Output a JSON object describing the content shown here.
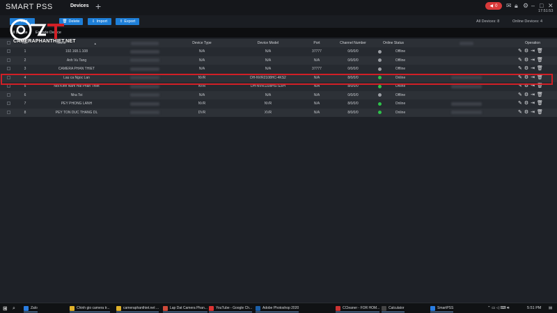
{
  "app": {
    "logo_text": "SMART PSS",
    "tab_title": "Devices",
    "add_tab_symbol": "+",
    "alarm_count": "0",
    "clock": "17:51:53"
  },
  "toolbar": {
    "buttons": [
      "Add",
      "Delete",
      "Import",
      "Export"
    ],
    "all_devices_label": "All Devices: 8",
    "online_devices_label": "Online Devices: 4"
  },
  "subtabs": [
    "All Device",
    "Encode Device"
  ],
  "watermark": {
    "text": "CAMERAPHANTHIET.NET"
  },
  "table": {
    "columns": [
      "No.",
      "Name",
      "IP",
      "Device Type",
      "Device Model",
      "Port",
      "Channel Number",
      "Online Status",
      "SN",
      "Operation"
    ],
    "rows": [
      {
        "no": "1",
        "name": "192.168.1.108",
        "type": "N/A",
        "model": "N/A",
        "port": "37777",
        "channels": "0/0/0/0",
        "status": "Offline",
        "online": false
      },
      {
        "no": "2",
        "name": "Anh Vu Tang",
        "type": "N/A",
        "model": "N/A",
        "port": "N/A",
        "channels": "0/0/0/0",
        "status": "Offline",
        "online": false
      },
      {
        "no": "3",
        "name": "CAMERA PHAN THIET",
        "type": "N/A",
        "model": "N/A",
        "port": "37777",
        "channels": "0/0/0/0",
        "status": "Offline",
        "online": false
      },
      {
        "no": "4",
        "name": "Lau ca Ngoc Lan",
        "type": "NVR",
        "model": "DH-NVR2108HC-4KS2",
        "port": "N/A",
        "channels": "8/0/0/0",
        "status": "Online",
        "online": true
      },
      {
        "no": "5",
        "name": "Noi Kinh Nam Hai Phan Thiet",
        "type": "NVR",
        "model": "DH-NVR1108HS-S3/H",
        "port": "N/A",
        "channels": "8/0/0/0",
        "status": "Online",
        "online": true
      },
      {
        "no": "6",
        "name": "Nha Toi",
        "type": "N/A",
        "model": "N/A",
        "port": "N/A",
        "channels": "0/0/0/0",
        "status": "Offline",
        "online": false
      },
      {
        "no": "7",
        "name": "PEY PHONG LANH",
        "type": "NVR",
        "model": "NVR",
        "port": "N/A",
        "channels": "8/0/0/0",
        "status": "Online",
        "online": true
      },
      {
        "no": "8",
        "name": "PEY TON DUC THANG DL",
        "type": "DVR",
        "model": "XVR",
        "port": "N/A",
        "channels": "8/0/0/0",
        "status": "Online",
        "online": true
      }
    ]
  },
  "taskbar": {
    "items": [
      "Zalo",
      "Chinh gio camera tr...",
      "cameraphanthiet.net ...",
      "Lap Dat Camera Phan...",
      "YouTube - Google Ch...",
      "Adobe Photoshop 2020",
      "CCleaner - FOR HOM...",
      "Calculator",
      "SmartPSS"
    ],
    "tray_time": "5:51 PM"
  },
  "colors": {
    "accent": "#1e7fd8",
    "online": "#2ec24a",
    "offline": "#9a9da3",
    "highlight": "#d21f26"
  }
}
